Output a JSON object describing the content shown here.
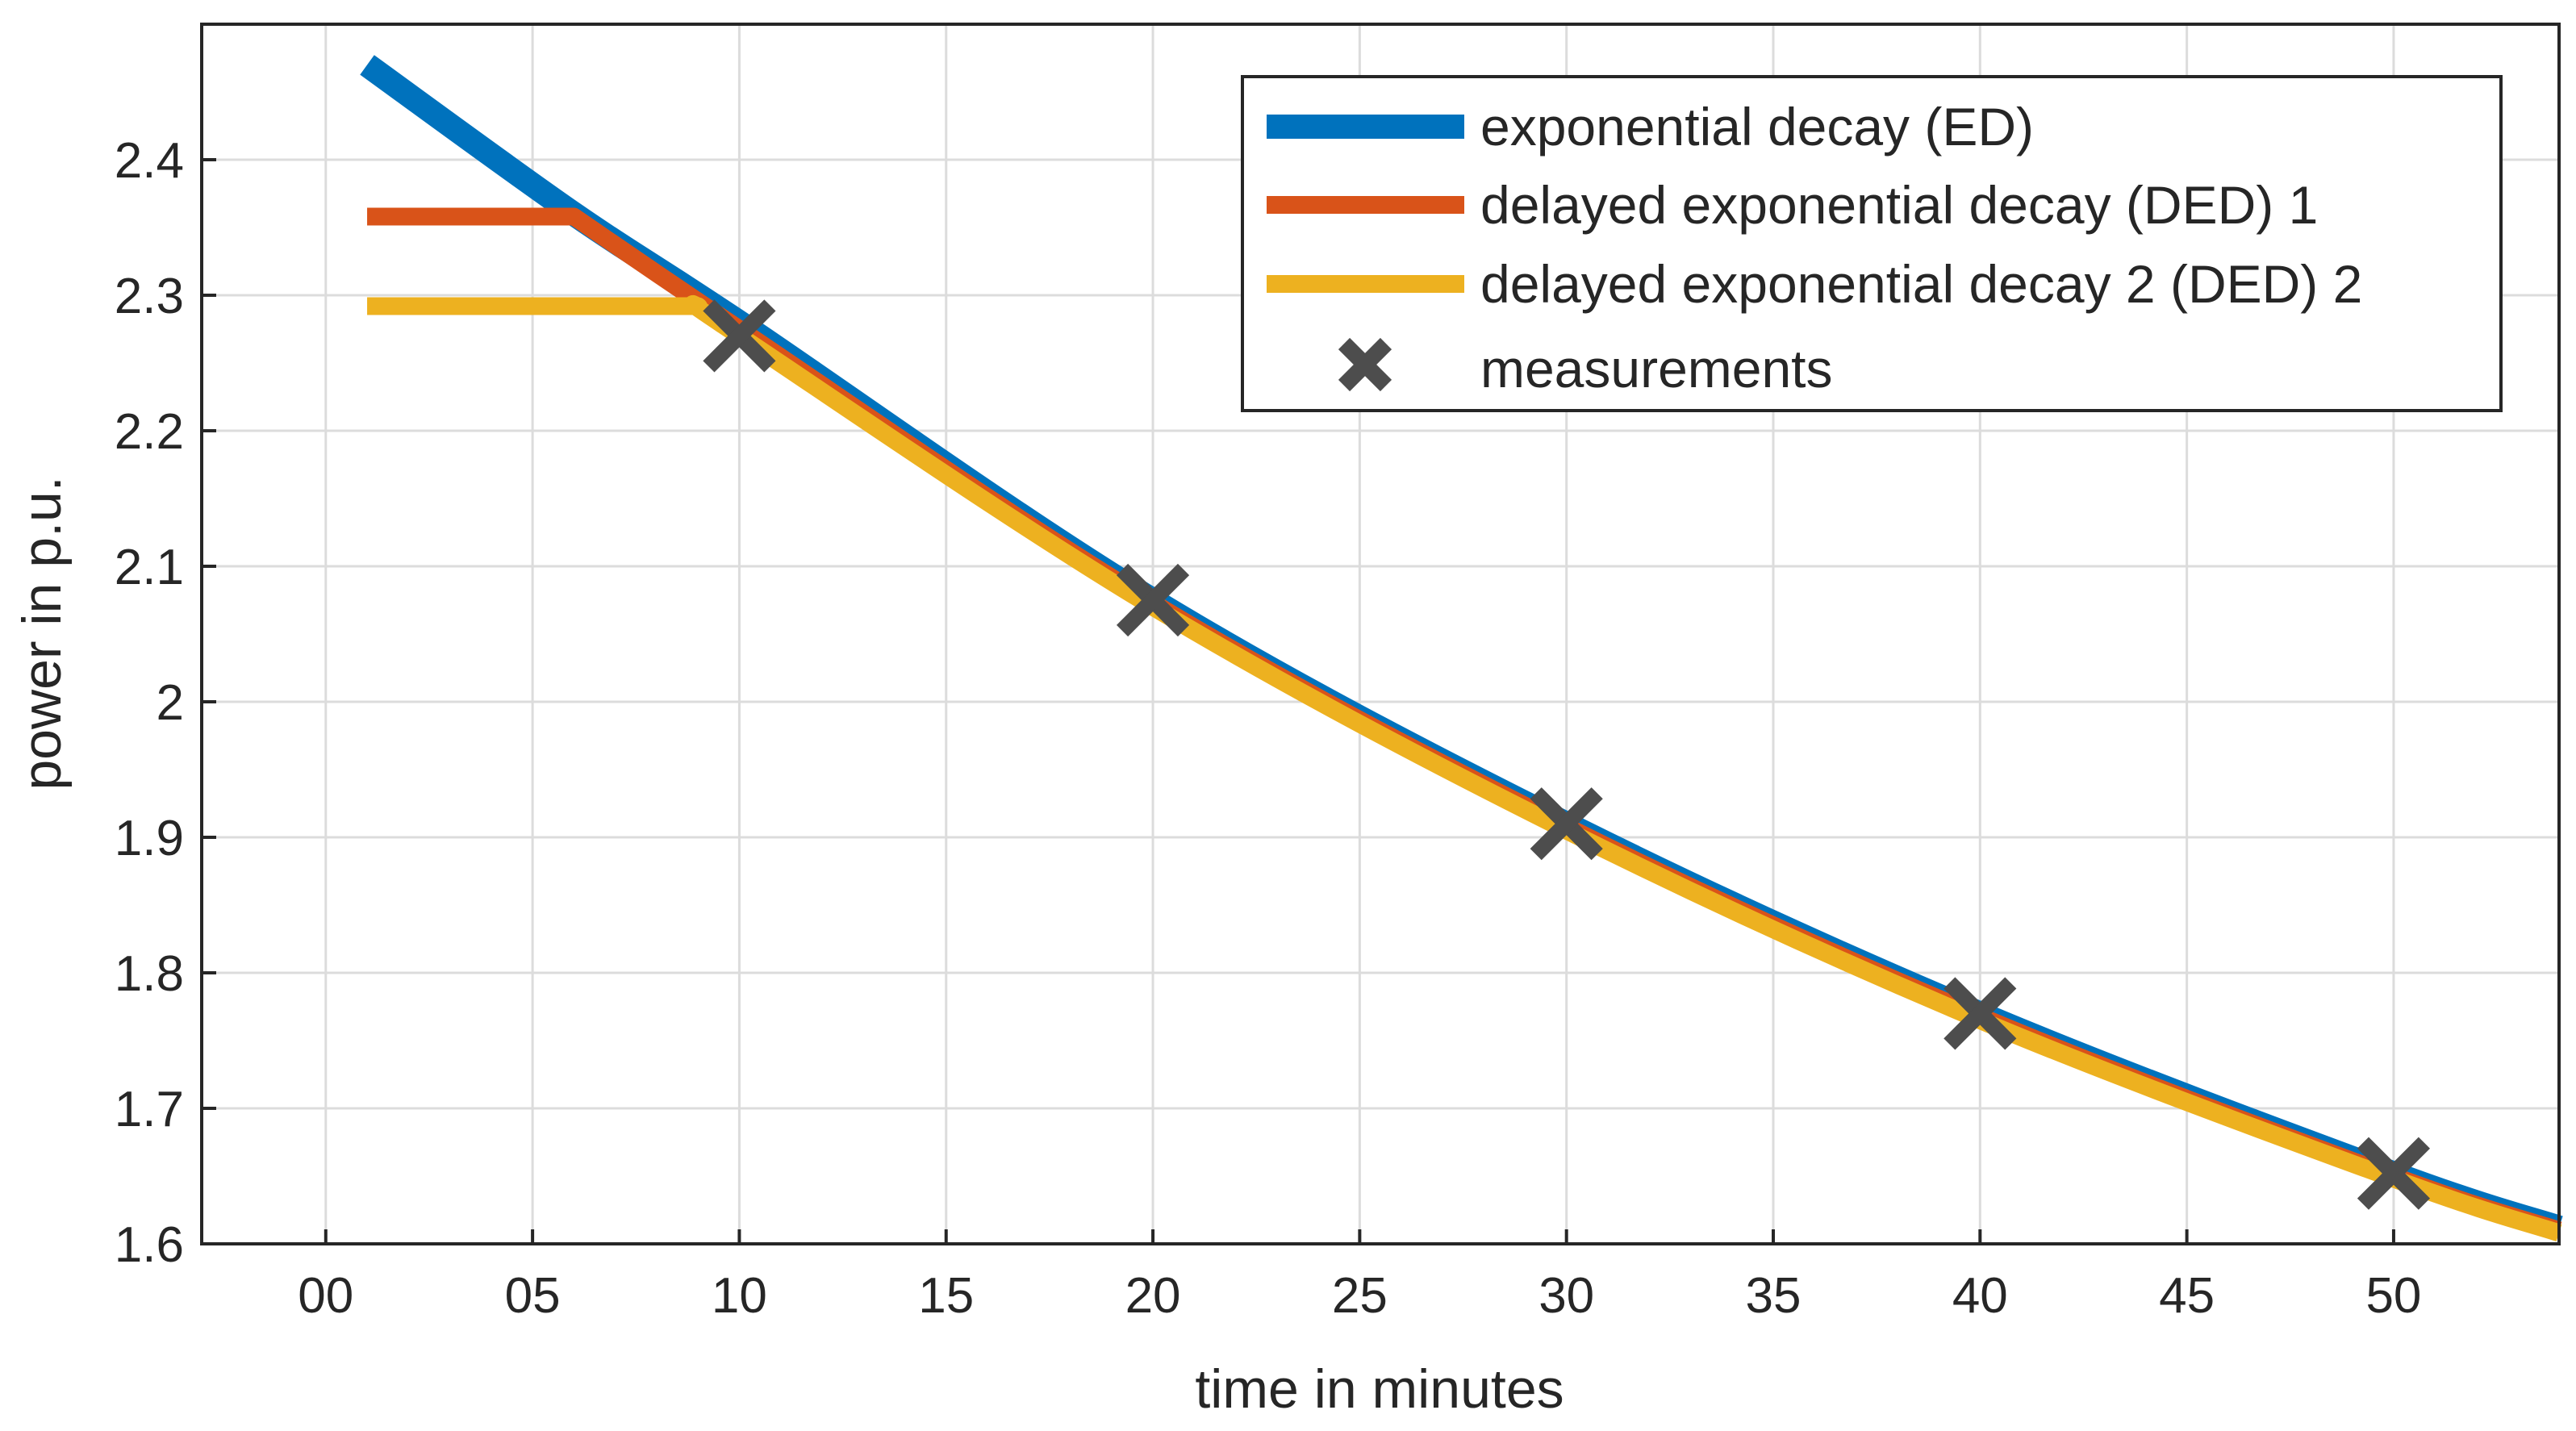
{
  "chart_data": {
    "type": "line",
    "title": "",
    "xlabel": "time in minutes",
    "ylabel": "power in p.u.",
    "xlim": [
      -3,
      54
    ],
    "ylim": [
      1.6,
      2.5
    ],
    "grid": true,
    "legend_position": "top-right",
    "x_ticks": [
      {
        "value": 0,
        "label": "00"
      },
      {
        "value": 5,
        "label": "05"
      },
      {
        "value": 10,
        "label": "10"
      },
      {
        "value": 15,
        "label": "15"
      },
      {
        "value": 20,
        "label": "20"
      },
      {
        "value": 25,
        "label": "25"
      },
      {
        "value": 30,
        "label": "30"
      },
      {
        "value": 35,
        "label": "35"
      },
      {
        "value": 40,
        "label": "40"
      },
      {
        "value": 45,
        "label": "45"
      },
      {
        "value": 50,
        "label": "50"
      }
    ],
    "y_ticks": [
      {
        "value": 1.6,
        "label": "1.6"
      },
      {
        "value": 1.7,
        "label": "1.7"
      },
      {
        "value": 1.8,
        "label": "1.8"
      },
      {
        "value": 1.9,
        "label": "1.9"
      },
      {
        "value": 2.0,
        "label": "2"
      },
      {
        "value": 2.1,
        "label": "2.1"
      },
      {
        "value": 2.2,
        "label": "2.2"
      },
      {
        "value": 2.3,
        "label": "2.3"
      },
      {
        "value": 2.4,
        "label": "2.4"
      }
    ],
    "series": [
      {
        "name": "exponential decay (ED)",
        "color": "#0072BD",
        "x": [
          1,
          6,
          10,
          20,
          30,
          40,
          50,
          54
        ],
        "y": [
          2.47,
          2.36,
          2.28,
          2.075,
          1.91,
          1.77,
          1.652,
          1.612
        ]
      },
      {
        "name": "delayed exponential decay (DED) 1",
        "color": "#D95319",
        "x": [
          1,
          6,
          10,
          20,
          30,
          40,
          50,
          54
        ],
        "y": [
          2.358,
          2.358,
          2.275,
          2.073,
          1.908,
          1.768,
          1.65,
          1.61
        ]
      },
      {
        "name": "delayed exponential decay 2 (DED) 2",
        "color": "#EDB120",
        "x": [
          1,
          9,
          10,
          20,
          30,
          40,
          50,
          54
        ],
        "y": [
          2.292,
          2.292,
          2.27,
          2.07,
          1.905,
          1.765,
          1.648,
          1.608
        ]
      },
      {
        "name": "measurements",
        "color": "#4D4D4D",
        "marker": "x",
        "x": [
          10,
          20,
          30,
          40,
          50
        ],
        "y": [
          2.27,
          2.075,
          1.91,
          1.77,
          1.652
        ]
      }
    ]
  }
}
